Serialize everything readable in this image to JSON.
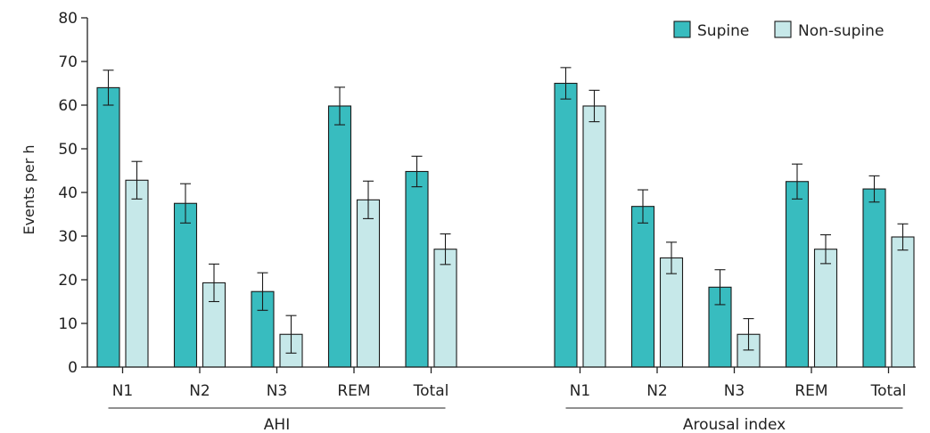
{
  "chart_data": {
    "type": "bar",
    "ylabel": "Events per h",
    "ylim": [
      0,
      80
    ],
    "yticks": [
      0,
      10,
      20,
      30,
      40,
      50,
      60,
      70,
      80
    ],
    "categories": [
      "N1",
      "N2",
      "N3",
      "REM",
      "Total"
    ],
    "groups": [
      {
        "label": "AHI",
        "series": [
          {
            "name": "Supine",
            "values": [
              64,
              37.5,
              17.3,
              59.8,
              44.8
            ],
            "error": [
              4,
              4.5,
              4.3,
              4.3,
              3.5
            ]
          },
          {
            "name": "Non-supine",
            "values": [
              42.8,
              19.3,
              7.5,
              38.3,
              27
            ],
            "error": [
              4.3,
              4.3,
              4.3,
              4.3,
              3.5
            ]
          }
        ]
      },
      {
        "label": "Arousal index",
        "series": [
          {
            "name": "Supine",
            "values": [
              65,
              36.8,
              18.3,
              42.5,
              40.8
            ],
            "error": [
              3.6,
              3.8,
              4,
              4,
              3
            ]
          },
          {
            "name": "Non-supine",
            "values": [
              59.8,
              25,
              7.5,
              27,
              29.8
            ],
            "error": [
              3.6,
              3.6,
              3.6,
              3.3,
              3
            ]
          }
        ]
      }
    ],
    "legend": {
      "placement": "top-right",
      "items": [
        {
          "name": "Supine",
          "color": "#38bcbf"
        },
        {
          "name": "Non-supine",
          "color": "#c6e8e9"
        }
      ]
    },
    "grid": false
  }
}
